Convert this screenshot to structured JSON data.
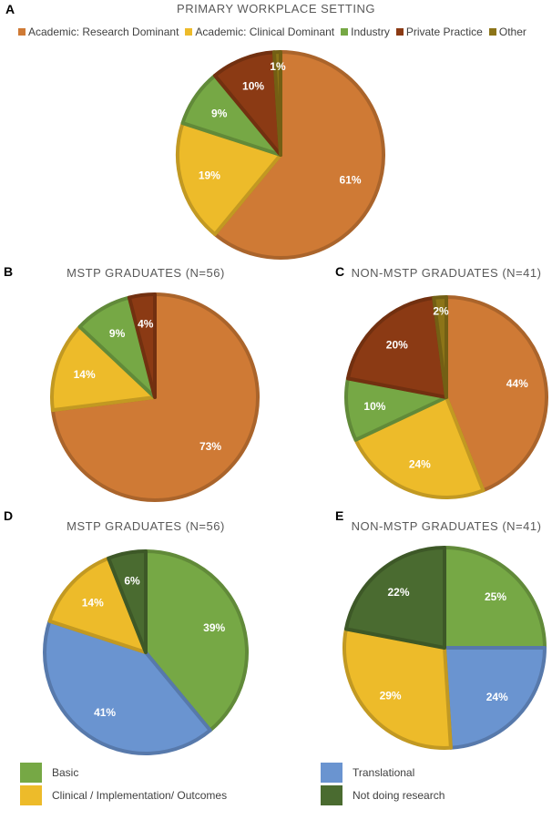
{
  "chart_data": [
    {
      "id": "A",
      "type": "pie",
      "title": "PRIMARY WORKPLACE SETTING",
      "categories": [
        "Academic: Research Dominant",
        "Academic: Clinical Dominant",
        "Industry",
        "Private Practice",
        "Other"
      ],
      "values": [
        61,
        19,
        9,
        10,
        1
      ],
      "labels": [
        "61%",
        "19%",
        "9%",
        "10%",
        "1%"
      ],
      "colors": [
        "#CF7A35",
        "#EDBB2A",
        "#76A845",
        "#8B3A14",
        "#8C7418"
      ],
      "legend": "top"
    },
    {
      "id": "B",
      "type": "pie",
      "title": "MSTP GRADUATES (N=56)",
      "categories": [
        "Academic: Research Dominant",
        "Academic: Clinical Dominant",
        "Industry",
        "Private Practice",
        "Other"
      ],
      "values": [
        73,
        14,
        9,
        4,
        0
      ],
      "labels": [
        "73%",
        "14%",
        "9%",
        "4%",
        ""
      ],
      "colors": [
        "#CF7A35",
        "#EDBB2A",
        "#76A845",
        "#8B3A14",
        "#8C7418"
      ]
    },
    {
      "id": "C",
      "type": "pie",
      "title": "NON-MSTP GRADUATES (N=41)",
      "categories": [
        "Academic: Research Dominant",
        "Academic: Clinical Dominant",
        "Industry",
        "Private Practice",
        "Other"
      ],
      "values": [
        44,
        24,
        10,
        20,
        2
      ],
      "labels": [
        "44%",
        "24%",
        "10%",
        "20%",
        "2%"
      ],
      "colors": [
        "#CF7A35",
        "#EDBB2A",
        "#76A845",
        "#8B3A14",
        "#8C7418"
      ]
    },
    {
      "id": "D",
      "type": "pie",
      "title": "MSTP GRADUATES (N=56)",
      "categories": [
        "Basic",
        "Translational",
        "Clinical / Implementation/ Outcomes",
        "Not doing research"
      ],
      "values": [
        39,
        41,
        14,
        6
      ],
      "labels": [
        "39%",
        "41%",
        "14%",
        "6%"
      ],
      "colors": [
        "#76A845",
        "#6A94D0",
        "#EDBB2A",
        "#4A6B30"
      ],
      "legend": "bottom"
    },
    {
      "id": "E",
      "type": "pie",
      "title": "NON-MSTP GRADUATES (N=41)",
      "categories": [
        "Basic",
        "Translational",
        "Clinical / Implementation/ Outcomes",
        "Not doing research"
      ],
      "values": [
        25,
        24,
        29,
        22
      ],
      "labels": [
        "25%",
        "24%",
        "29%",
        "22%"
      ],
      "colors": [
        "#76A845",
        "#6A94D0",
        "#EDBB2A",
        "#4A6B30"
      ],
      "legend": "bottom"
    }
  ],
  "panel_letters": {
    "a": "A",
    "b": "B",
    "c": "C",
    "d": "D",
    "e": "E"
  },
  "legend_top": [
    {
      "label": "Academic: Research Dominant",
      "color": "#CF7A35"
    },
    {
      "label": "Academic: Clinical Dominant",
      "color": "#EDBB2A"
    },
    {
      "label": "Industry",
      "color": "#76A845"
    },
    {
      "label": "Private Practice",
      "color": "#8B3A14"
    },
    {
      "label": "Other",
      "color": "#8C7418"
    }
  ],
  "legend_bottom": [
    {
      "label": "Basic",
      "color": "#76A845"
    },
    {
      "label": "Clinical / Implementation/ Outcomes",
      "color": "#EDBB2A"
    },
    {
      "label": "Translational",
      "color": "#6A94D0"
    },
    {
      "label": "Not doing research",
      "color": "#4A6B30"
    }
  ]
}
